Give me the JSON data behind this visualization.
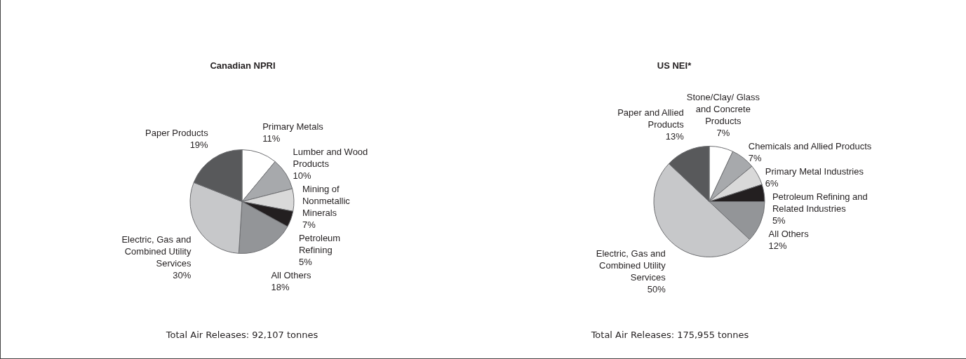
{
  "chart_data": [
    {
      "type": "pie",
      "title": "Canadian NPRI",
      "categories": [
        "Primary Metals",
        "Lumber and Wood Products",
        "Mining of Nonmetallic Minerals",
        "Petroleum Refining",
        "All Others",
        "Electric, Gas and Combined Utility Services",
        "Paper Products"
      ],
      "values": [
        11,
        10,
        7,
        5,
        18,
        30,
        19
      ],
      "value_labels": [
        "11%",
        "10%",
        "7%",
        "5%",
        "18%",
        "30%",
        "19%"
      ],
      "colors": [
        "#ffffff",
        "#a7a9ac",
        "#d9d9d9",
        "#231f20",
        "#939598",
        "#c7c8ca",
        "#58595b"
      ],
      "annotations": [
        "Total Air Releases: 92,107 tonnes"
      ],
      "legend": false
    },
    {
      "type": "pie",
      "title": "US NEI*",
      "categories": [
        "Stone/Clay/ Glass and Concrete Products",
        "Chemicals and Allied Products",
        "Primary Metal Industries",
        "Petroleum Refining and Related Industries",
        "All Others",
        "Electric, Gas and Combined Utility Services",
        "Paper and Allied Products"
      ],
      "values": [
        7,
        7,
        6,
        5,
        12,
        50,
        13
      ],
      "value_labels": [
        "7%",
        "7%",
        "6%",
        "5%",
        "12%",
        "50%",
        "13%"
      ],
      "colors": [
        "#ffffff",
        "#a7a9ac",
        "#d9d9d9",
        "#231f20",
        "#939598",
        "#c7c8ca",
        "#58595b"
      ],
      "annotations": [
        "Total Air Releases: 175,955 tonnes"
      ],
      "legend": false
    }
  ]
}
